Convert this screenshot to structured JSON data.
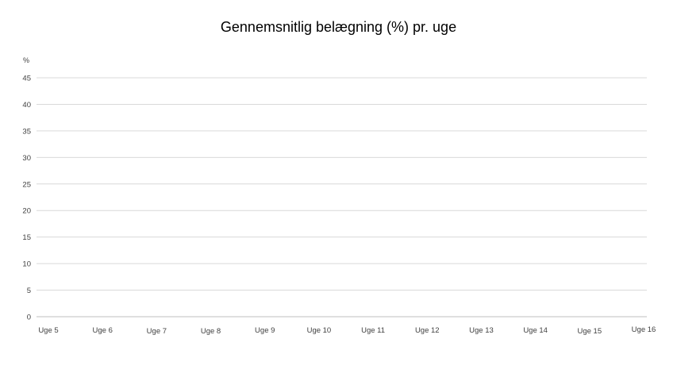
{
  "chart_data": {
    "type": "line",
    "title": "Gennemsnitlig belægning (%) pr. uge",
    "xlabel": "",
    "ylabel": "%",
    "categories": [
      "Uge 5",
      "Uge 6",
      "Uge 7",
      "Uge 8",
      "Uge 9",
      "Uge 10",
      "Uge 11",
      "Uge 12",
      "Uge 13",
      "Uge 14",
      "Uge 15",
      "Uge 16"
    ],
    "series": [],
    "ylim": [
      0,
      45
    ],
    "yticks": [
      "0",
      "5",
      "10",
      "15",
      "20",
      "25",
      "30",
      "35",
      "40",
      "45"
    ],
    "grid": true,
    "colors": {
      "grid": "#d9d9d9",
      "axis": "#bfbfbf",
      "text": "#404040"
    }
  }
}
